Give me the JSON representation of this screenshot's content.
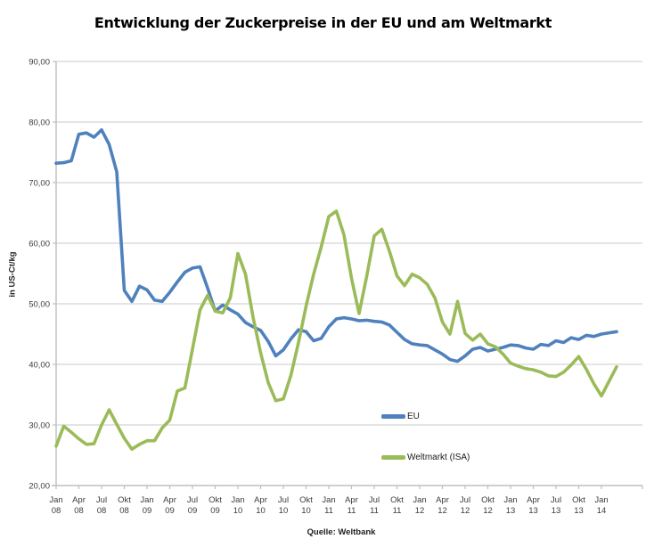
{
  "chart_data": {
    "type": "line",
    "title": "Entwicklung der Zuckerpreise in der EU und am Weltmarkt",
    "ylabel": "in US-Ct/kg",
    "source": "Quelle: Weltbank",
    "ylim": [
      20,
      90
    ],
    "grid": "horizontal",
    "legend_position": "inside-right-middle",
    "x_start": "Jan 2008",
    "x_end": "Mär 2014",
    "frequency": "monatlich",
    "colors": {
      "eu_line": "#4F81BD",
      "weltmarkt_line": "#9BBB59",
      "gridline": "#D4D4D4",
      "axis": "#BDBDBD",
      "tick_text": "#3d3d3d"
    },
    "yticks": [
      {
        "value": 20,
        "label": "20,00"
      },
      {
        "value": 30,
        "label": "30,00"
      },
      {
        "value": 40,
        "label": "40,00"
      },
      {
        "value": 50,
        "label": "50,00"
      },
      {
        "value": 60,
        "label": "60,00"
      },
      {
        "value": 70,
        "label": "70,00"
      },
      {
        "value": 80,
        "label": "80,00"
      },
      {
        "value": 90,
        "label": "90,00"
      }
    ],
    "xticks": [
      {
        "month": "Jan",
        "year": "08"
      },
      {
        "month": "Apr",
        "year": "08"
      },
      {
        "month": "Jul",
        "year": "08"
      },
      {
        "month": "Okt",
        "year": "08"
      },
      {
        "month": "Jan",
        "year": "09"
      },
      {
        "month": "Apr",
        "year": "09"
      },
      {
        "month": "Jul",
        "year": "09"
      },
      {
        "month": "Okt",
        "year": "09"
      },
      {
        "month": "Jan",
        "year": "10"
      },
      {
        "month": "Apr",
        "year": "10"
      },
      {
        "month": "Jul",
        "year": "10"
      },
      {
        "month": "Okt",
        "year": "10"
      },
      {
        "month": "Jan",
        "year": "11"
      },
      {
        "month": "Apr",
        "year": "11"
      },
      {
        "month": "Jul",
        "year": "11"
      },
      {
        "month": "Okt",
        "year": "11"
      },
      {
        "month": "Jan",
        "year": "12"
      },
      {
        "month": "Apr",
        "year": "12"
      },
      {
        "month": "Jul",
        "year": "12"
      },
      {
        "month": "Okt",
        "year": "12"
      },
      {
        "month": "Jan",
        "year": "13"
      },
      {
        "month": "Apr",
        "year": "13"
      },
      {
        "month": "Jul",
        "year": "13"
      },
      {
        "month": "Okt",
        "year": "13"
      },
      {
        "month": "Jan",
        "year": "14"
      }
    ],
    "series": [
      {
        "id": "eu",
        "name": "EU",
        "color": "#4F81BD",
        "values": [
          73.2,
          73.3,
          73.6,
          78.0,
          78.2,
          77.5,
          78.7,
          76.3,
          71.8,
          52.2,
          50.4,
          52.9,
          52.3,
          50.6,
          50.4,
          51.9,
          53.6,
          55.2,
          55.9,
          56.1,
          52.6,
          48.8,
          49.8,
          49.0,
          48.3,
          46.9,
          46.2,
          45.6,
          43.8,
          41.4,
          42.4,
          44.2,
          45.7,
          45.4,
          43.9,
          44.3,
          46.2,
          47.5,
          47.7,
          47.5,
          47.2,
          47.3,
          47.1,
          47.0,
          46.5,
          45.3,
          44.1,
          43.4,
          43.2,
          43.1,
          42.4,
          41.7,
          40.8,
          40.5,
          41.4,
          42.5,
          42.8,
          42.2,
          42.5,
          42.8,
          43.2,
          43.1,
          42.7,
          42.5,
          43.3,
          43.1,
          43.9,
          43.6,
          44.4,
          44.1,
          44.8,
          44.6,
          45.0,
          45.2,
          45.4
        ]
      },
      {
        "id": "weltmarkt",
        "name": "Weltmarkt (ISA)",
        "color": "#9BBB59",
        "values": [
          26.5,
          29.8,
          28.8,
          27.7,
          26.8,
          26.9,
          30.0,
          32.5,
          30.1,
          27.8,
          26.0,
          26.8,
          27.4,
          27.4,
          29.5,
          30.8,
          35.6,
          36.1,
          42.5,
          49.0,
          51.4,
          48.8,
          48.5,
          51.0,
          58.3,
          54.9,
          47.8,
          41.9,
          37.0,
          34.0,
          34.3,
          38.2,
          43.6,
          49.6,
          54.9,
          59.4,
          64.4,
          65.3,
          61.4,
          54.2,
          48.4,
          54.5,
          61.2,
          62.3,
          58.7,
          54.6,
          53.0,
          54.9,
          54.3,
          53.2,
          51.0,
          47.0,
          45.0,
          50.4,
          45.1,
          44.0,
          45.0,
          43.4,
          42.9,
          41.7,
          40.2,
          39.7,
          39.3,
          39.1,
          38.7,
          38.1,
          38.0,
          38.7,
          39.9,
          41.3,
          39.2,
          36.8,
          34.8,
          37.2,
          39.6
        ]
      }
    ]
  }
}
